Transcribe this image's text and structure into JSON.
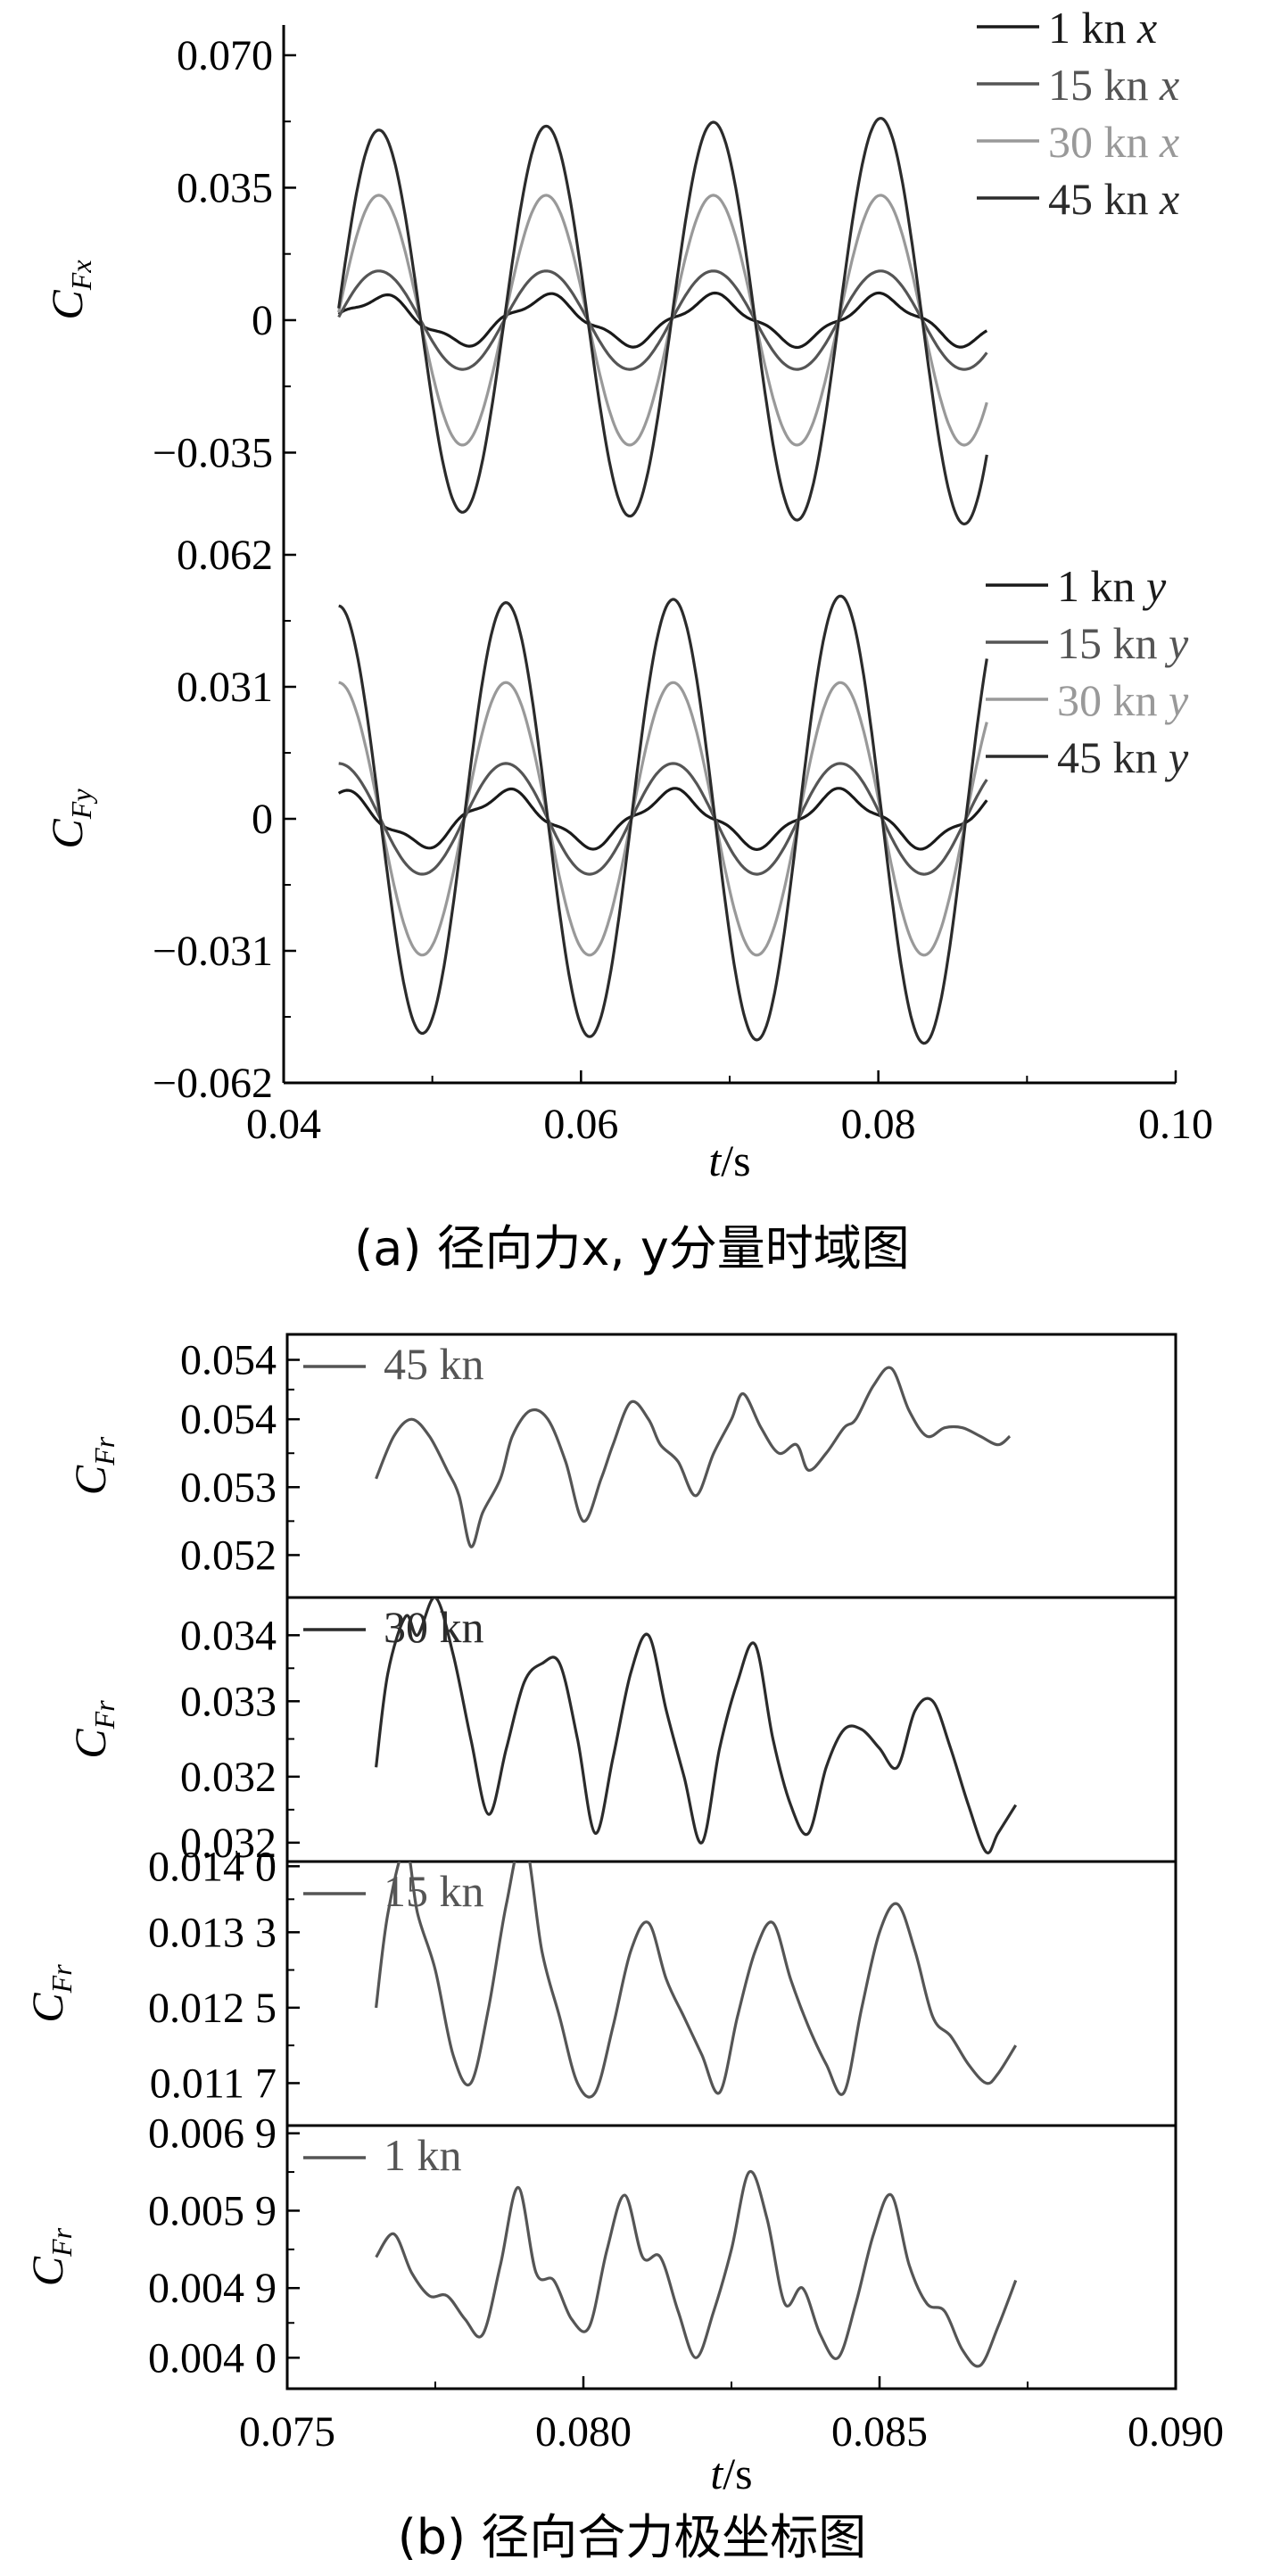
{
  "figure": {
    "caption_a_prefix": "(a) ",
    "caption_a_text": "径向力x, y分量时域图",
    "caption_b_prefix": "(b) ",
    "caption_b_text": "径向合力极坐标图"
  },
  "chart_data": [
    {
      "id": "a-top",
      "type": "line",
      "ylabel": "C_Fx",
      "ylim": [
        -0.062,
        0.078
      ],
      "xlim": [
        0.04,
        0.1
      ],
      "yticks": [
        0.07,
        0.035,
        0,
        -0.035
      ],
      "yticklabels": [
        "0.070",
        "0.035",
        "0",
        "−0.035"
      ],
      "grid": false,
      "legend_position": "top-right",
      "t_start": 0.0437,
      "t_end": 0.0873,
      "period": 0.01125,
      "t_peak": 0.0464,
      "series": [
        {
          "name": "1 kn x",
          "color": "#1a1a1a",
          "amplitude": 0.006,
          "growth": 0.0
        },
        {
          "name": "15 kn x",
          "color": "#555555",
          "amplitude": 0.013,
          "growth": 0.0
        },
        {
          "name": "30 kn x",
          "color": "#999999",
          "amplitude": 0.033,
          "growth": 0.0
        },
        {
          "name": "45 kn x",
          "color": "#2b2b2b",
          "amplitude": 0.05,
          "growth": 0.004
        }
      ]
    },
    {
      "id": "a-bottom",
      "type": "line",
      "ylabel": "C_Fy",
      "ylim": [
        -0.062,
        0.062
      ],
      "xlim": [
        0.04,
        0.1
      ],
      "xlabel": "t/s",
      "xticks": [
        0.04,
        0.06,
        0.08,
        0.1
      ],
      "xticklabels": [
        "0.04",
        "0.06",
        "0.08",
        "0.10"
      ],
      "yticks": [
        0.062,
        0.031,
        0,
        -0.031,
        -0.062
      ],
      "yticklabels": [
        "0.062",
        "0.031",
        "0",
        "−0.031",
        "−0.062"
      ],
      "grid": false,
      "legend_position": "top-right",
      "t_start": 0.0437,
      "t_end": 0.0873,
      "period": 0.01125,
      "t_peak": 0.0437,
      "series": [
        {
          "name": "1 kn y",
          "color": "#1a1a1a",
          "amplitude": 0.006,
          "growth": 0.0
        },
        {
          "name": "15 kn y",
          "color": "#555555",
          "amplitude": 0.013,
          "growth": 0.0
        },
        {
          "name": "30 kn y",
          "color": "#999999",
          "amplitude": 0.032,
          "growth": 0.0
        },
        {
          "name": "45 kn y",
          "color": "#2b2b2b",
          "amplitude": 0.05,
          "growth": 0.003
        }
      ]
    },
    {
      "id": "b-45",
      "type": "line",
      "ylabel": "C_Fr",
      "ylim": [
        0.0517,
        0.0548
      ],
      "xlim": [
        0.075,
        0.09
      ],
      "yticks": [
        0.0545,
        0.0538,
        0.053,
        0.0522
      ],
      "yticklabels": [
        "0.054",
        "0.054",
        "0.053",
        "0.052"
      ],
      "series": [
        {
          "name": "45 kn",
          "color": "#555555",
          "x": [
            0.0765,
            0.0768,
            0.0771,
            0.0774,
            0.0777,
            0.0779,
            0.0781,
            0.0783,
            0.0786,
            0.0788,
            0.0791,
            0.0794,
            0.0797,
            0.08,
            0.0803,
            0.0805,
            0.0808,
            0.0811,
            0.0813,
            0.0816,
            0.0819,
            0.0822,
            0.0825,
            0.0827,
            0.083,
            0.0833,
            0.0836,
            0.0838,
            0.0841,
            0.0844,
            0.0846,
            0.0849,
            0.0852,
            0.0855,
            0.0858,
            0.0861,
            0.0864,
            0.0867,
            0.087,
            0.0872
          ],
          "y": [
            0.0531,
            0.0536,
            0.0538,
            0.0536,
            0.0532,
            0.0529,
            0.0523,
            0.0527,
            0.0531,
            0.0536,
            0.0539,
            0.0538,
            0.0533,
            0.0526,
            0.0531,
            0.0535,
            0.054,
            0.0538,
            0.0535,
            0.0533,
            0.0529,
            0.0534,
            0.0538,
            0.0541,
            0.0537,
            0.0534,
            0.0535,
            0.0532,
            0.0534,
            0.0537,
            0.0538,
            0.0542,
            0.0544,
            0.0539,
            0.0536,
            0.0537,
            0.0537,
            0.0536,
            0.0535,
            0.0536
          ]
        }
      ]
    },
    {
      "id": "b-30",
      "type": "line",
      "ylabel": "C_Fr",
      "ylim": [
        0.0316,
        0.0344
      ],
      "xlim": [
        0.075,
        0.09
      ],
      "yticks": [
        0.034,
        0.0333,
        0.0325,
        0.0318
      ],
      "yticklabels": [
        "0.034",
        "0.033",
        "0.032",
        "0.032"
      ],
      "series": [
        {
          "name": "30 kn",
          "color": "#2b2b2b",
          "x": [
            0.0765,
            0.0767,
            0.077,
            0.0772,
            0.0775,
            0.0778,
            0.0781,
            0.0784,
            0.0787,
            0.079,
            0.0793,
            0.0796,
            0.0799,
            0.0802,
            0.0805,
            0.0808,
            0.0811,
            0.0814,
            0.0817,
            0.082,
            0.0823,
            0.0826,
            0.0829,
            0.0832,
            0.0835,
            0.0838,
            0.0841,
            0.0844,
            0.0847,
            0.085,
            0.0853,
            0.0856,
            0.0859,
            0.0862,
            0.0865,
            0.0868,
            0.087,
            0.0873
          ],
          "y": [
            0.0326,
            0.0336,
            0.0342,
            0.034,
            0.0344,
            0.0338,
            0.0329,
            0.0321,
            0.0328,
            0.0335,
            0.0337,
            0.0337,
            0.0329,
            0.0319,
            0.0327,
            0.0336,
            0.034,
            0.0332,
            0.0325,
            0.0318,
            0.0328,
            0.0335,
            0.0339,
            0.0329,
            0.0322,
            0.0319,
            0.0326,
            0.033,
            0.033,
            0.0328,
            0.0326,
            0.0332,
            0.0333,
            0.0328,
            0.0322,
            0.0317,
            0.0319,
            0.0322
          ]
        }
      ]
    },
    {
      "id": "b-15",
      "type": "line",
      "ylabel": "C_Fr",
      "ylim": [
        0.01125,
        0.01405
      ],
      "xlim": [
        0.075,
        0.09
      ],
      "yticks": [
        0.014,
        0.0133,
        0.0125,
        0.0117
      ],
      "yticklabels": [
        "0.014 0",
        "0.013 3",
        "0.012 5",
        "0.011 7"
      ],
      "series": [
        {
          "name": "15 kn",
          "color": "#555555",
          "x": [
            0.0765,
            0.0767,
            0.077,
            0.0772,
            0.0775,
            0.0778,
            0.0781,
            0.0784,
            0.0787,
            0.079,
            0.0793,
            0.0796,
            0.0799,
            0.0802,
            0.0805,
            0.0808,
            0.0811,
            0.0814,
            0.0817,
            0.082,
            0.0823,
            0.0826,
            0.0829,
            0.0832,
            0.0835,
            0.0838,
            0.0841,
            0.0844,
            0.0847,
            0.085,
            0.0853,
            0.0856,
            0.0859,
            0.0862,
            0.0865,
            0.0868,
            0.087,
            0.0873
          ],
          "y": [
            0.0125,
            0.0135,
            0.0142,
            0.0135,
            0.0129,
            0.012,
            0.0117,
            0.0125,
            0.0136,
            0.0143,
            0.0131,
            0.0124,
            0.0117,
            0.0116,
            0.0123,
            0.0131,
            0.0134,
            0.0128,
            0.0124,
            0.012,
            0.0116,
            0.0124,
            0.0131,
            0.0134,
            0.0128,
            0.0123,
            0.0119,
            0.0116,
            0.0125,
            0.0133,
            0.0136,
            0.0131,
            0.0124,
            0.0122,
            0.0119,
            0.0117,
            0.0118,
            0.0121
          ]
        }
      ]
    },
    {
      "id": "b-1",
      "type": "line",
      "ylabel": "C_Fr",
      "xlabel": "t/s",
      "ylim": [
        0.0036,
        0.007
      ],
      "xlim": [
        0.075,
        0.09
      ],
      "xticks": [
        0.075,
        0.08,
        0.085,
        0.09
      ],
      "xticklabels": [
        "0.075",
        "0.080",
        "0.085",
        "0.090"
      ],
      "yticks": [
        0.0069,
        0.0059,
        0.0049,
        0.004
      ],
      "yticklabels": [
        "0.006 9",
        "0.005 9",
        "0.004 9",
        "0.004 0"
      ],
      "series": [
        {
          "name": "1 kn",
          "color": "#555555",
          "x": [
            0.0765,
            0.0768,
            0.0771,
            0.0774,
            0.0777,
            0.078,
            0.0783,
            0.0786,
            0.0789,
            0.0792,
            0.0795,
            0.0798,
            0.0801,
            0.0804,
            0.0807,
            0.081,
            0.0813,
            0.0816,
            0.0819,
            0.0822,
            0.0825,
            0.0828,
            0.0831,
            0.0834,
            0.0837,
            0.084,
            0.0843,
            0.0846,
            0.0849,
            0.0852,
            0.0855,
            0.0858,
            0.0861,
            0.0864,
            0.0867,
            0.087,
            0.0873
          ],
          "y": [
            0.0053,
            0.0056,
            0.0051,
            0.0048,
            0.0048,
            0.0045,
            0.0043,
            0.0052,
            0.0062,
            0.0051,
            0.005,
            0.0045,
            0.0044,
            0.0054,
            0.0061,
            0.0053,
            0.0053,
            0.0046,
            0.004,
            0.0046,
            0.0054,
            0.0064,
            0.0058,
            0.0047,
            0.0049,
            0.0043,
            0.004,
            0.0047,
            0.0056,
            0.0061,
            0.0052,
            0.0047,
            0.0046,
            0.0041,
            0.0039,
            0.0044,
            0.005
          ]
        }
      ]
    }
  ]
}
